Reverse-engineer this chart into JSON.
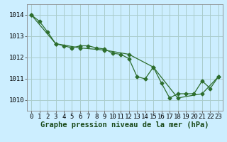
{
  "title": "Graphe pression niveau de la mer (hPa)",
  "background_color": "#cceeff",
  "line_color": "#2d6e2d",
  "grid_color": "#aacccc",
  "xlim": [
    -0.5,
    23.5
  ],
  "ylim": [
    1009.5,
    1014.5
  ],
  "yticks": [
    1010,
    1011,
    1012,
    1013,
    1014
  ],
  "xticks": [
    0,
    1,
    2,
    3,
    4,
    5,
    6,
    7,
    8,
    9,
    10,
    11,
    12,
    13,
    14,
    15,
    16,
    17,
    18,
    19,
    20,
    21,
    22,
    23
  ],
  "line1_x": [
    0,
    1,
    2,
    3,
    4,
    5,
    6,
    7,
    8,
    9,
    10,
    11,
    12,
    13,
    14,
    15,
    16,
    17,
    18,
    19,
    20,
    21,
    22,
    23
  ],
  "line1_y": [
    1014.0,
    1013.7,
    1013.2,
    1012.65,
    1012.55,
    1012.45,
    1012.55,
    1012.55,
    1012.45,
    1012.4,
    1012.2,
    1012.15,
    1011.95,
    1011.1,
    1011.0,
    1011.55,
    1010.8,
    1010.1,
    1010.3,
    1010.3,
    1010.3,
    1010.9,
    1010.55,
    1011.1
  ],
  "line2_x": [
    0,
    3,
    6,
    9,
    12,
    15,
    18,
    21,
    23
  ],
  "line2_y": [
    1014.0,
    1012.65,
    1012.45,
    1012.35,
    1012.15,
    1011.55,
    1010.1,
    1010.3,
    1011.1
  ],
  "tick_fontsize": 6.5,
  "title_fontsize": 7.5,
  "title_color": "#1a4a1a"
}
